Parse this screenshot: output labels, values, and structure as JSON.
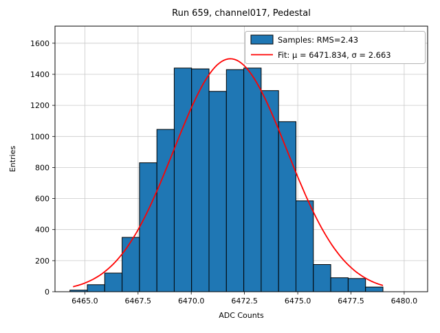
{
  "chart_data": {
    "type": "bar",
    "subtype": "histogram-with-gaussian-fit",
    "title": "Run 659, channel017, Pedestal",
    "xlabel": "ADC Counts",
    "ylabel": "Entries",
    "xlim": [
      6463.6,
      6481.1
    ],
    "ylim": [
      0,
      1710
    ],
    "grid": true,
    "legend_position": "upper right",
    "legend": {
      "samples_label": "Samples: RMS=2.43",
      "fit_label": "Fit: μ = 6471.834, σ = 2.663"
    },
    "x_ticks": {
      "values": [
        6465.0,
        6467.5,
        6470.0,
        6472.5,
        6475.0,
        6477.5,
        6480.0
      ],
      "labels": [
        "6465.0",
        "6467.5",
        "6470.0",
        "6472.5",
        "6475.0",
        "6477.5",
        "6480.0"
      ]
    },
    "y_ticks": {
      "values": [
        0,
        200,
        400,
        600,
        800,
        1000,
        1200,
        1400,
        1600
      ],
      "labels": [
        "0",
        "200",
        "400",
        "600",
        "800",
        "1000",
        "1200",
        "1400",
        "1600"
      ]
    },
    "histogram": {
      "series_name": "Samples",
      "rms": 2.43,
      "bin_start": 6464.3,
      "bin_width": 0.8167,
      "counts": [
        10,
        45,
        120,
        350,
        830,
        1045,
        1440,
        1435,
        1290,
        1430,
        1440,
        1295,
        1095,
        585,
        175,
        90,
        85,
        30
      ],
      "color": "#1f77b4",
      "edge_color": "#000000"
    },
    "fit": {
      "type": "gaussian",
      "mu": 6471.834,
      "sigma": 2.663,
      "amplitude": 1500,
      "color": "#ff0000",
      "x_range": [
        6464.45,
        6479.0
      ]
    }
  }
}
